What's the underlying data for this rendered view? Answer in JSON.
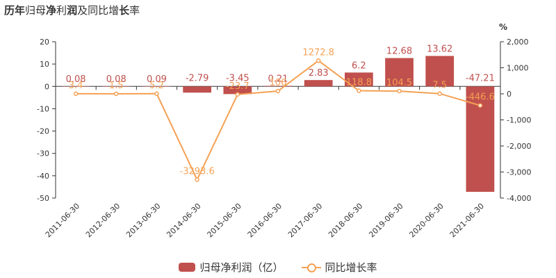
{
  "title_parts": [
    "历年",
    "归母",
    "净",
    "利",
    "润",
    "及同比增",
    "长",
    "率"
  ],
  "unit_right": "%",
  "legend": {
    "bar_label": "归母净利润（亿）",
    "line_label": "同比增长率"
  },
  "colors": {
    "bar": "#c0504d",
    "line": "#f4a154"
  },
  "chart_data": {
    "type": "bar",
    "categories": [
      "2011-06-30",
      "2012-06-30",
      "2013-06-30",
      "2014-06-30",
      "2015-06-30",
      "2016-06-30",
      "2017-06-30",
      "2018-06-30",
      "2019-06-30",
      "2020-06-30",
      "2021-06-30"
    ],
    "series": [
      {
        "name": "归母净利润（亿）",
        "type": "bar",
        "axis": "left",
        "values": [
          0.08,
          0.08,
          0.09,
          -2.79,
          -3.45,
          0.21,
          2.83,
          6.2,
          12.68,
          13.62,
          -47.21
        ],
        "labels": [
          "0.08",
          "0.08",
          "0.09",
          "-2.79",
          "-3.45",
          "0.21",
          "2.83",
          "6.2",
          "12.68",
          "13.62",
          "-47.21"
        ]
      },
      {
        "name": "同比增长率",
        "type": "line",
        "axis": "right",
        "values": [
          3.4,
          1.5,
          5.2,
          -3293.6,
          -23.7,
          106,
          1272.8,
          118.8,
          104.5,
          7.5,
          -446.6
        ],
        "labels": [
          "3.4",
          "1.5",
          "5.2",
          "-3293.6",
          "-23.7",
          "106",
          "1272.8",
          "118.8",
          "104.5",
          "7.5",
          "-446.6"
        ]
      }
    ],
    "ylim_left": [
      -50,
      20
    ],
    "yticks_left": [
      "20",
      "10",
      "0",
      "-10",
      "-20",
      "-30",
      "-40",
      "-50"
    ],
    "ylim_right": [
      -4000,
      2000
    ],
    "yticks_right": [
      "2,000",
      "1,000",
      "0",
      "-1,000",
      "-2,000",
      "-3,000",
      "-4,000"
    ],
    "grid": false,
    "legend_position": "bottom"
  }
}
